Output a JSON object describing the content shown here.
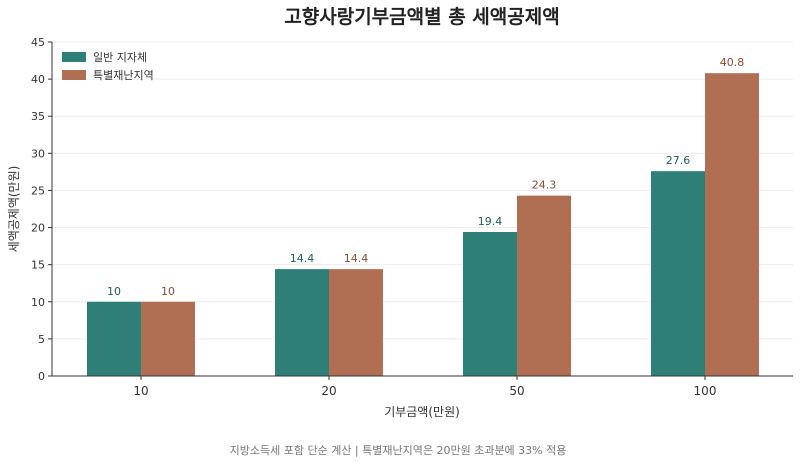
{
  "chart_data": {
    "type": "bar",
    "title": "고향사랑기부금액별 총 세액공제액",
    "xlabel": "기부금액(만원)",
    "ylabel": "세액공제액(만원)",
    "categories": [
      "10",
      "20",
      "50",
      "100"
    ],
    "series": [
      {
        "name": "일반 지자체",
        "values": [
          10,
          14.4,
          19.4,
          27.6
        ],
        "color": "#2e7f78",
        "label_color": "#1f5f5a"
      },
      {
        "name": "특별재난지역",
        "values": [
          10,
          14.4,
          24.3,
          40.8
        ],
        "color": "#b06e52",
        "label_color": "#8a4a32"
      }
    ],
    "ylim": [
      0,
      45
    ],
    "yticks": [
      0,
      5,
      10,
      15,
      20,
      25,
      30,
      35,
      40,
      45
    ],
    "grid": true,
    "legend_position": "top-left"
  },
  "footnote": "지방소득세 포함 단순 계산 | 특별재난지역은 20만원 초과분에 33% 적용"
}
